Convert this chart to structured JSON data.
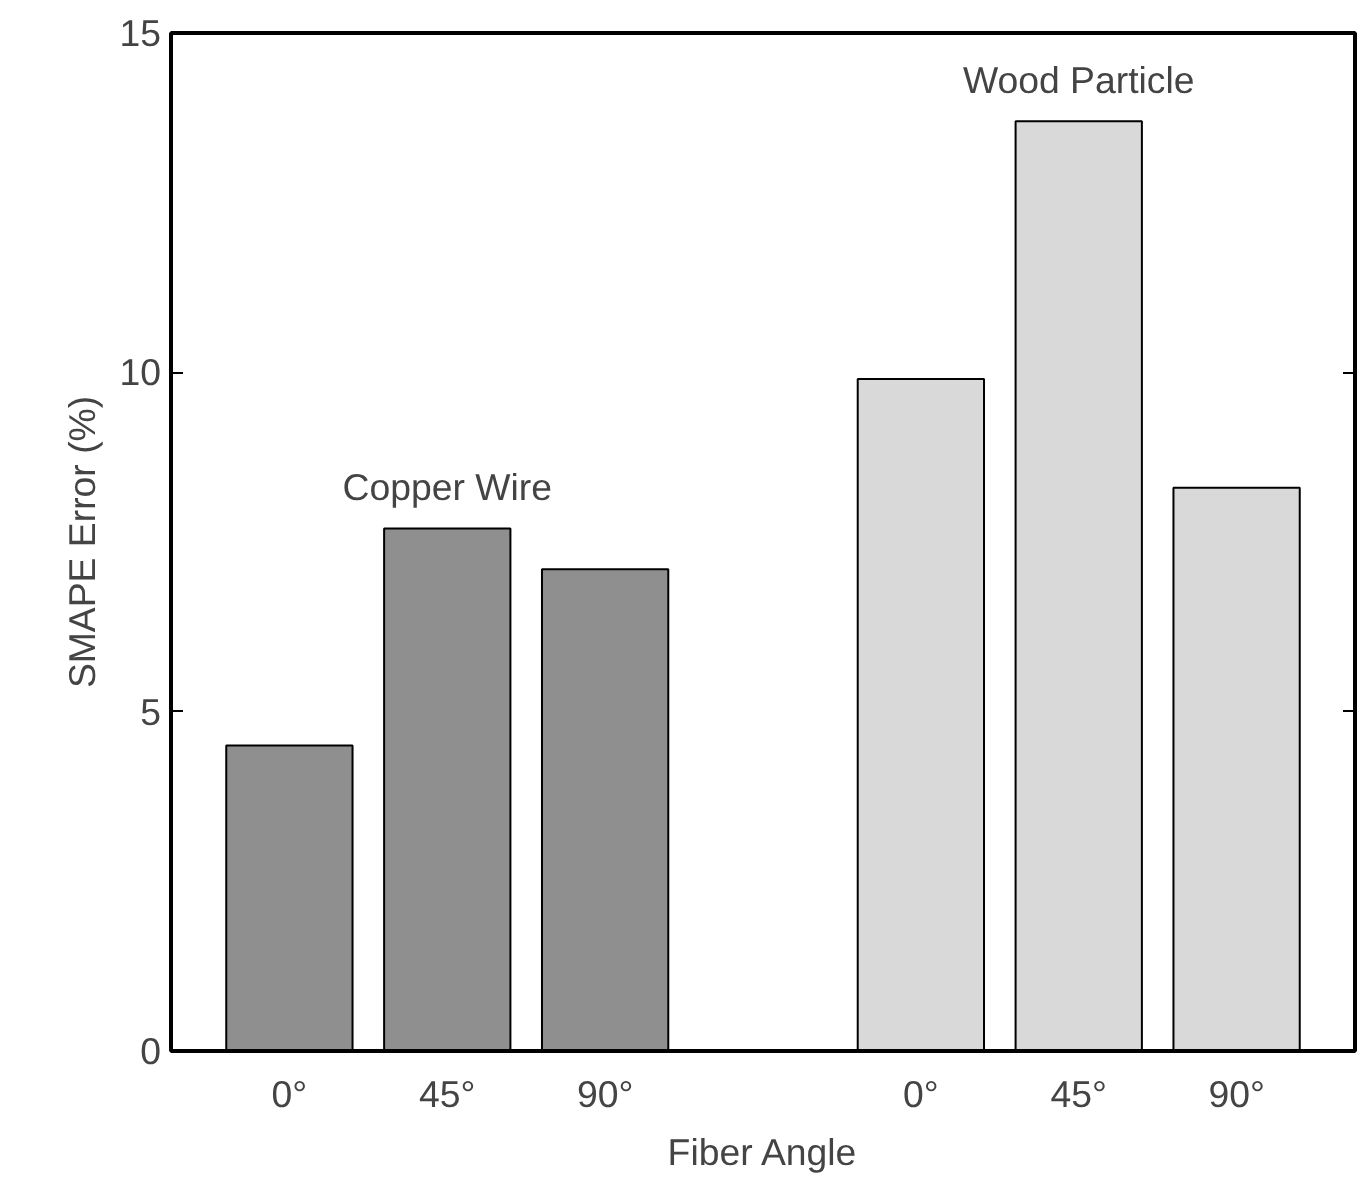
{
  "chart_data": {
    "type": "bar",
    "xlabel": "Fiber Angle",
    "ylabel": "SMAPE Error (%)",
    "categories": [
      "0°",
      "45°",
      "90°",
      null,
      "0°",
      "45°",
      "90°"
    ],
    "series": [
      {
        "name": "Copper Wire",
        "color": "#8f8f8f",
        "values": [
          4.5,
          7.7,
          7.1,
          null,
          null,
          null,
          null
        ]
      },
      {
        "name": "Wood Particle",
        "color": "#d9d9d9",
        "values": [
          null,
          null,
          null,
          null,
          9.9,
          13.7,
          8.3
        ]
      }
    ],
    "ylim": [
      0,
      15
    ],
    "yticks": [
      0,
      5,
      10,
      15
    ],
    "grid": false
  }
}
